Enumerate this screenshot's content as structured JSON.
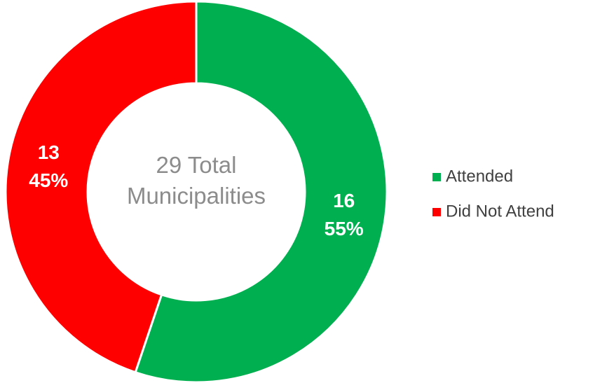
{
  "chart_data": {
    "type": "donut",
    "center_text": "29 Total Municipalities",
    "categories": [
      "Attended",
      "Did Not Attend"
    ],
    "values": [
      16,
      13
    ],
    "percentages": [
      55,
      45
    ],
    "percentage_labels": [
      "55%",
      "45%"
    ],
    "colors": [
      "#00b050",
      "#ff0000"
    ],
    "legend": "right"
  }
}
